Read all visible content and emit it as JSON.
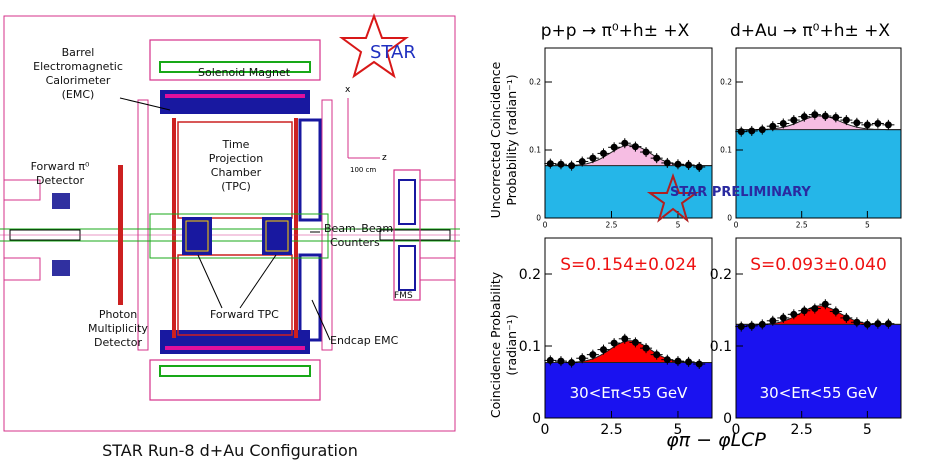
{
  "detector": {
    "title": "STAR Run-8 d+Au Configuration",
    "logo_text": "STAR",
    "labels": {
      "solenoid": "Solenoid Magnet",
      "bemc": [
        "Barrel",
        "Electromagnetic",
        "Calorimeter",
        "(EMC)"
      ],
      "tpc": [
        "Time",
        "Projection",
        "Chamber",
        "(TPC)"
      ],
      "fpd": [
        "Forward π⁰",
        "Detector"
      ],
      "bbc": [
        "Beam–Beam",
        "Counters"
      ],
      "pmd": [
        "Photon",
        "Multiplicity",
        "Detector"
      ],
      "ftpc": "Forward TPC",
      "eemc": "Endcap EMC",
      "fms": "FMS",
      "axis_x": "x",
      "axis_z": "z",
      "scale": "100 cm"
    }
  },
  "plots": {
    "col_titles": [
      "p+p → π⁰+h± +X",
      "d+Au → π⁰+h± +X"
    ],
    "ylabel_top": [
      "Uncorrected Coincidence",
      "Probability (radian⁻¹)"
    ],
    "ylabel_bottom": [
      "Coincidence Probability",
      "(radian⁻¹)"
    ],
    "xlabel": "φπ − φLCP",
    "preliminary": "STAR PRELIMINARY",
    "energy_label": "30<Eπ<55 GeV",
    "colors": {
      "pedestal": "#25b6e8",
      "peak_top": "#f6bde3",
      "pedestal_bottom": "#1a12f0",
      "peak_bottom": "#ff0000",
      "s_text": "#ee1111"
    }
  },
  "chart_data": [
    {
      "type": "scatter",
      "title": "p+p → π⁰+h± +X",
      "panel": "top-left",
      "ylim": [
        0,
        0.25
      ],
      "xlim": [
        0,
        6.28
      ],
      "yticks": [
        0,
        0.1,
        0.2
      ],
      "xticks": [
        0,
        2.5,
        5
      ],
      "x": [
        0.2,
        0.6,
        1.0,
        1.4,
        1.8,
        2.2,
        2.6,
        3.0,
        3.4,
        3.8,
        4.2,
        4.6,
        5.0,
        5.4,
        5.8
      ],
      "y": [
        0.08,
        0.079,
        0.077,
        0.083,
        0.088,
        0.095,
        0.104,
        0.11,
        0.105,
        0.097,
        0.088,
        0.081,
        0.079,
        0.078,
        0.075
      ],
      "pedestal": 0.077
    },
    {
      "type": "scatter",
      "title": "d+Au → π⁰+h± +X",
      "panel": "top-right",
      "ylim": [
        0,
        0.25
      ],
      "xlim": [
        0,
        6.28
      ],
      "yticks": [
        0,
        0.1,
        0.2
      ],
      "xticks": [
        0,
        2.5,
        5
      ],
      "x": [
        0.2,
        0.6,
        1.0,
        1.4,
        1.8,
        2.2,
        2.6,
        3.0,
        3.4,
        3.8,
        4.2,
        4.6,
        5.0,
        5.4,
        5.8
      ],
      "y": [
        0.127,
        0.128,
        0.13,
        0.135,
        0.139,
        0.144,
        0.149,
        0.152,
        0.15,
        0.148,
        0.144,
        0.14,
        0.137,
        0.139,
        0.137
      ],
      "pedestal": 0.13
    },
    {
      "type": "scatter",
      "panel": "bottom-left",
      "ylim": [
        0,
        0.25
      ],
      "xlim": [
        0,
        6.28
      ],
      "yticks": [
        0,
        0.1,
        0.2
      ],
      "xticks": [
        0,
        2.5,
        5
      ],
      "annotation": "S=0.154±0.024",
      "x": [
        0.2,
        0.6,
        1.0,
        1.4,
        1.8,
        2.2,
        2.6,
        3.0,
        3.4,
        3.8,
        4.2,
        4.6,
        5.0,
        5.4,
        5.8
      ],
      "y": [
        0.08,
        0.079,
        0.077,
        0.083,
        0.088,
        0.095,
        0.104,
        0.11,
        0.105,
        0.097,
        0.088,
        0.081,
        0.079,
        0.078,
        0.075
      ],
      "pedestal": 0.077
    },
    {
      "type": "scatter",
      "panel": "bottom-right",
      "ylim": [
        0,
        0.25
      ],
      "xlim": [
        0,
        6.28
      ],
      "yticks": [
        0,
        0.1,
        0.2
      ],
      "xticks": [
        0,
        2.5,
        5
      ],
      "annotation": "S=0.093±0.040",
      "x": [
        0.2,
        0.6,
        1.0,
        1.4,
        1.8,
        2.2,
        2.6,
        3.0,
        3.4,
        3.8,
        4.2,
        4.6,
        5.0,
        5.4,
        5.8
      ],
      "y": [
        0.127,
        0.128,
        0.13,
        0.135,
        0.139,
        0.144,
        0.149,
        0.152,
        0.158,
        0.148,
        0.139,
        0.133,
        0.13,
        0.131,
        0.131
      ],
      "pedestal": 0.13
    }
  ]
}
